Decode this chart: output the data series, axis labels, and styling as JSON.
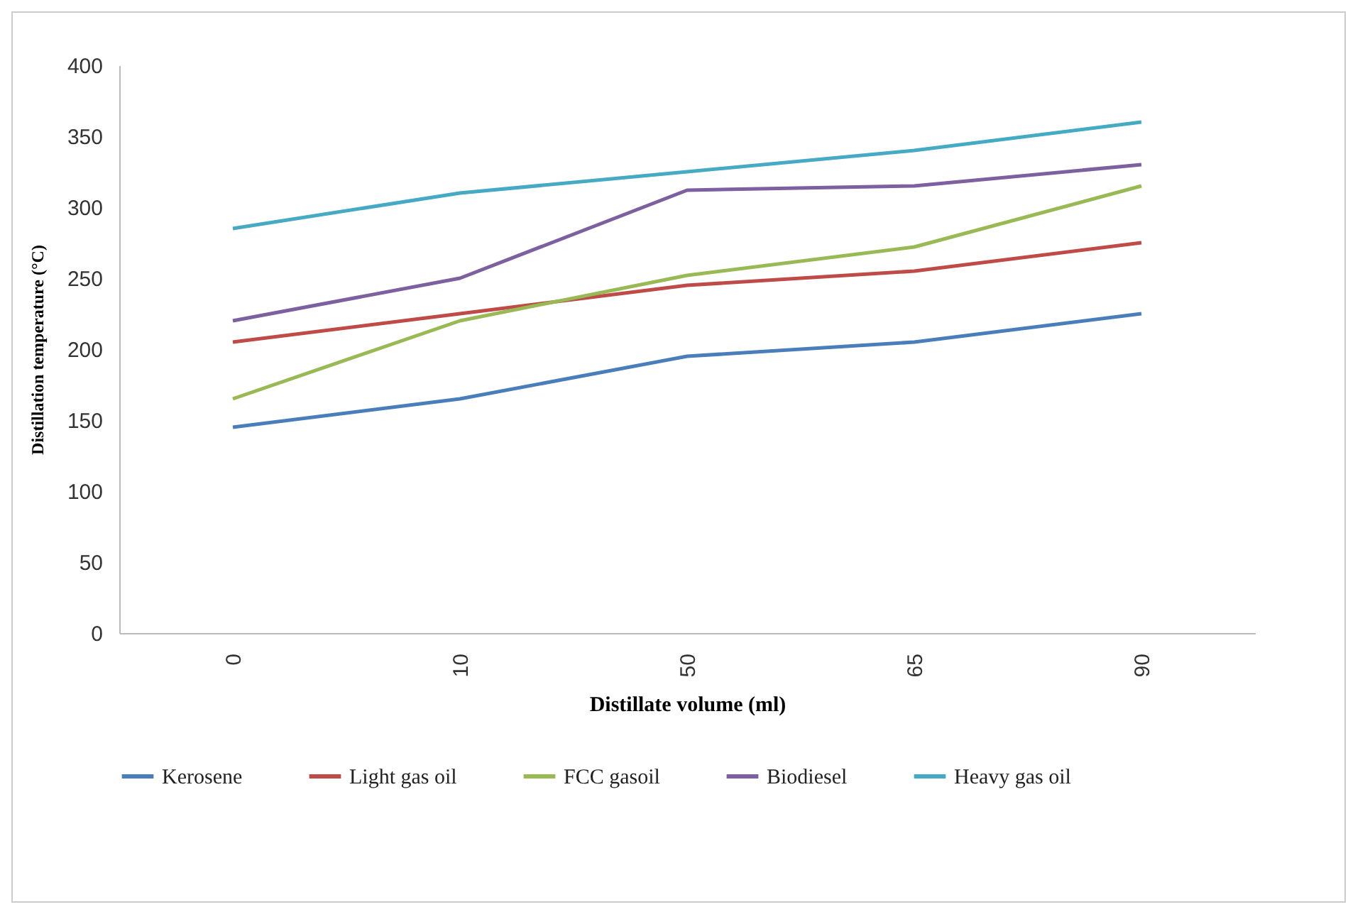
{
  "chart_data": {
    "type": "line",
    "xlabel": "Distillate volume (ml)",
    "ylabel": "Distillation temperature (°C)",
    "categories": [
      "0",
      "10",
      "50",
      "65",
      "90"
    ],
    "series": [
      {
        "name": "Kerosene",
        "color": "#4a7ebb",
        "values": [
          145,
          165,
          195,
          205,
          225
        ]
      },
      {
        "name": "Light gas oil",
        "color": "#be4b48",
        "values": [
          205,
          225,
          245,
          255,
          275
        ]
      },
      {
        "name": "FCC gasoil",
        "color": "#98b954",
        "values": [
          165,
          220,
          252,
          272,
          315
        ]
      },
      {
        "name": "Biodiesel",
        "color": "#7d60a0",
        "values": [
          220,
          250,
          312,
          315,
          330
        ]
      },
      {
        "name": "Heavy gas oil",
        "color": "#46aac5",
        "values": [
          285,
          310,
          325,
          340,
          360
        ]
      }
    ],
    "ylim": [
      0,
      400
    ],
    "yticks": [
      0,
      50,
      100,
      150,
      200,
      250,
      300,
      350,
      400
    ],
    "grid": false,
    "legend": "bottom"
  }
}
